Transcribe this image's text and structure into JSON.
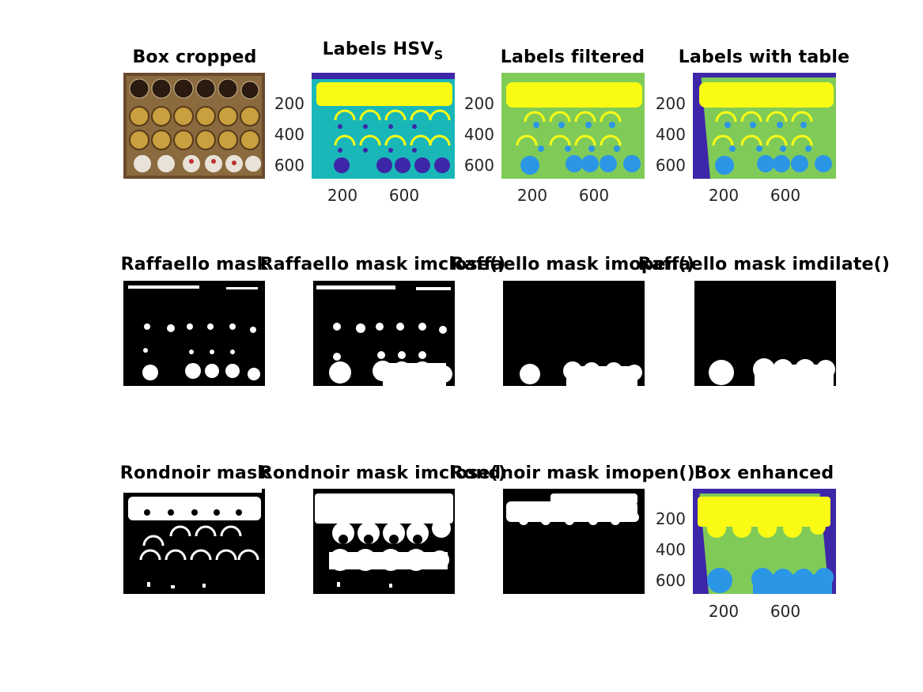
{
  "figure": {
    "row1": {
      "box_cropped": {
        "title": "Box cropped"
      },
      "labels_hsv": {
        "title": "Labels HSV",
        "subscript": "S",
        "yticks": [
          "200",
          "400",
          "600"
        ],
        "xticks": [
          "200",
          "600"
        ]
      },
      "labels_filtered": {
        "title": "Labels filtered",
        "yticks": [
          "200",
          "400",
          "600"
        ],
        "xticks": [
          "200",
          "600"
        ]
      },
      "labels_with_table": {
        "title": "Labels with table",
        "yticks": [
          "200",
          "400",
          "600"
        ],
        "xticks": [
          "200",
          "600"
        ]
      }
    },
    "row2": {
      "raffaello_mask": {
        "title": "Raffaello mask"
      },
      "raffaello_imclose": {
        "title": "Raffaello mask imclose()"
      },
      "raffaello_imopen": {
        "title": "Raffaello mask imopen()"
      },
      "raffaello_imdilate": {
        "title": "Raffaello mask imdilate()"
      }
    },
    "row3": {
      "rondnoir_mask": {
        "title": "Rondnoir mask"
      },
      "rondnoir_imclose": {
        "title": "Rondnoir mask imclose()"
      },
      "rondnoir_imopen": {
        "title": "Rondnoir mask imopen()"
      },
      "box_enhanced": {
        "title": "Box enhanced",
        "yticks": [
          "200",
          "400",
          "600"
        ],
        "xticks": [
          "200",
          "600"
        ]
      }
    }
  },
  "colors": {
    "parula_dark": "#3e26a8",
    "parula_blue": "#2c96e6",
    "parula_teal": "#1ab7b8",
    "parula_green": "#80cb58",
    "parula_yellow": "#f9fb15",
    "mask_black": "#000000",
    "mask_white": "#ffffff"
  }
}
